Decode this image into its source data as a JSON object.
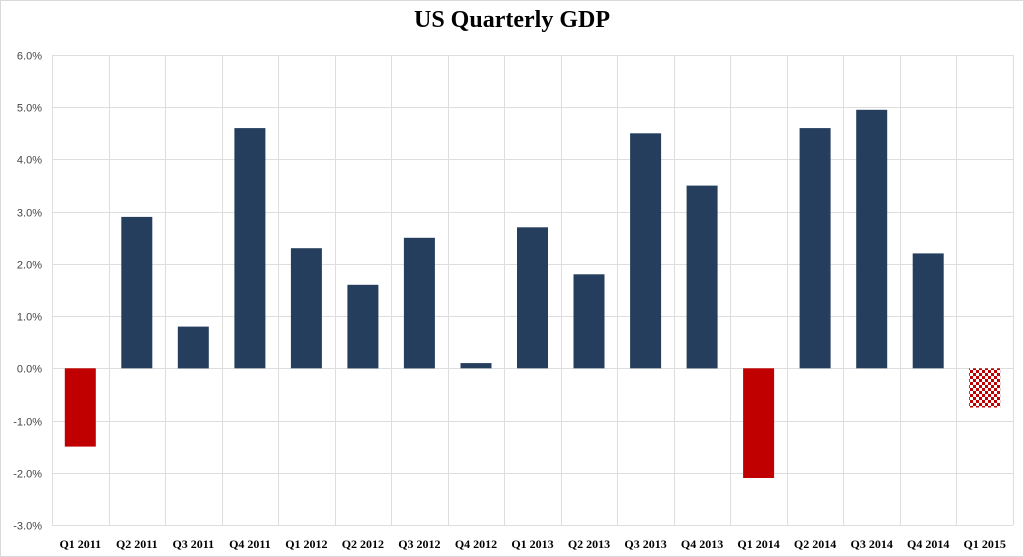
{
  "chart_data": {
    "type": "bar",
    "title": "US Quarterly GDP",
    "xlabel": "",
    "ylabel": "",
    "ylim": [
      -3.0,
      6.0
    ],
    "yticks": [
      "-3.0%",
      "-2.0%",
      "-1.0%",
      "0.0%",
      "1.0%",
      "2.0%",
      "3.0%",
      "4.0%",
      "5.0%",
      "6.0%"
    ],
    "grid": true,
    "categories": [
      "Q1 2011",
      "Q2 2011",
      "Q3 2011",
      "Q4 2011",
      "Q1 2012",
      "Q2 2012",
      "Q3 2012",
      "Q4 2012",
      "Q1 2013",
      "Q2 2013",
      "Q3 2013",
      "Q4 2013",
      "Q1 2014",
      "Q2 2014",
      "Q3 2014",
      "Q4 2014",
      "Q1 2015"
    ],
    "values": [
      -1.5,
      2.9,
      0.8,
      4.6,
      2.3,
      1.6,
      2.5,
      0.1,
      2.7,
      1.8,
      4.5,
      3.5,
      -2.1,
      4.6,
      4.95,
      2.2,
      -0.75
    ],
    "bar_styles": [
      "negative",
      "positive",
      "positive",
      "positive",
      "positive",
      "positive",
      "positive",
      "positive",
      "positive",
      "positive",
      "positive",
      "positive",
      "negative",
      "positive",
      "positive",
      "positive",
      "estimate"
    ],
    "colors": {
      "positive": "#253e5e",
      "negative": "#c00000",
      "estimate": "#c00000",
      "grid": "#dedede"
    }
  }
}
